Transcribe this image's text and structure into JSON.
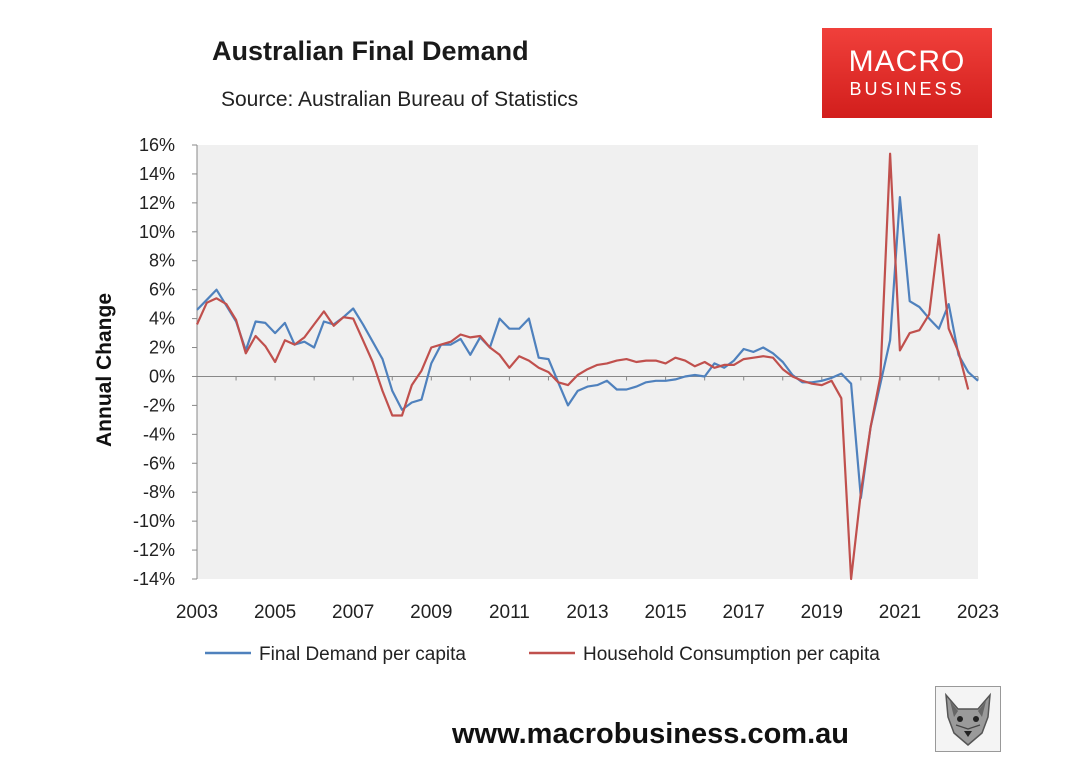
{
  "title": "Australian Final Demand",
  "subtitle": "Source: Australian Bureau of Statistics",
  "logo": {
    "line1": "MACRO",
    "line2": "BUSINESS",
    "color": "#e02a28"
  },
  "website": "www.macrobusiness.com.au",
  "chart_data": {
    "type": "line",
    "title": "Australian Final Demand",
    "subtitle": "Source: Australian Bureau of Statistics",
    "xlabel": "",
    "ylabel": "Annual Change",
    "xlim": [
      2003,
      2023
    ],
    "ylim": [
      -14,
      16
    ],
    "x_ticks": [
      "2003",
      "2005",
      "2007",
      "2009",
      "2011",
      "2013",
      "2015",
      "2017",
      "2019",
      "2021",
      "2023"
    ],
    "y_ticks": [
      "16%",
      "14%",
      "12%",
      "10%",
      "8%",
      "6%",
      "4%",
      "2%",
      "0%",
      "-2%",
      "-4%",
      "-6%",
      "-8%",
      "-10%",
      "-12%",
      "-14%"
    ],
    "grid": false,
    "legend_position": "bottom",
    "plot_background": "#f0f0f0",
    "series": [
      {
        "name": "Final Demand per capita",
        "color": "#4f81bd",
        "points": [
          [
            2003.0,
            4.6
          ],
          [
            2003.25,
            5.3
          ],
          [
            2003.5,
            6.0
          ],
          [
            2003.75,
            4.9
          ],
          [
            2004.0,
            3.8
          ],
          [
            2004.25,
            1.8
          ],
          [
            2004.5,
            3.8
          ],
          [
            2004.75,
            3.7
          ],
          [
            2005.0,
            3.0
          ],
          [
            2005.25,
            3.7
          ],
          [
            2005.5,
            2.2
          ],
          [
            2005.75,
            2.4
          ],
          [
            2006.0,
            2.0
          ],
          [
            2006.25,
            3.8
          ],
          [
            2006.5,
            3.6
          ],
          [
            2006.75,
            4.1
          ],
          [
            2007.0,
            4.7
          ],
          [
            2007.25,
            3.6
          ],
          [
            2007.5,
            2.4
          ],
          [
            2007.75,
            1.2
          ],
          [
            2008.0,
            -1.0
          ],
          [
            2008.25,
            -2.3
          ],
          [
            2008.5,
            -1.8
          ],
          [
            2008.75,
            -1.6
          ],
          [
            2009.0,
            0.9
          ],
          [
            2009.25,
            2.2
          ],
          [
            2009.5,
            2.2
          ],
          [
            2009.75,
            2.6
          ],
          [
            2010.0,
            1.5
          ],
          [
            2010.25,
            2.7
          ],
          [
            2010.5,
            2.0
          ],
          [
            2010.75,
            4.0
          ],
          [
            2011.0,
            3.3
          ],
          [
            2011.25,
            3.3
          ],
          [
            2011.5,
            4.0
          ],
          [
            2011.75,
            1.3
          ],
          [
            2012.0,
            1.2
          ],
          [
            2012.25,
            -0.4
          ],
          [
            2012.5,
            -2.0
          ],
          [
            2012.75,
            -1.0
          ],
          [
            2013.0,
            -0.7
          ],
          [
            2013.25,
            -0.6
          ],
          [
            2013.5,
            -0.3
          ],
          [
            2013.75,
            -0.9
          ],
          [
            2014.0,
            -0.9
          ],
          [
            2014.25,
            -0.7
          ],
          [
            2014.5,
            -0.4
          ],
          [
            2014.75,
            -0.3
          ],
          [
            2015.0,
            -0.3
          ],
          [
            2015.25,
            -0.2
          ],
          [
            2015.5,
            0.0
          ],
          [
            2015.75,
            0.1
          ],
          [
            2016.0,
            0.0
          ],
          [
            2016.25,
            0.9
          ],
          [
            2016.5,
            0.6
          ],
          [
            2016.75,
            1.1
          ],
          [
            2017.0,
            1.9
          ],
          [
            2017.25,
            1.7
          ],
          [
            2017.5,
            2.0
          ],
          [
            2017.75,
            1.6
          ],
          [
            2018.0,
            1.0
          ],
          [
            2018.25,
            0.1
          ],
          [
            2018.5,
            -0.4
          ],
          [
            2018.75,
            -0.4
          ],
          [
            2019.0,
            -0.3
          ],
          [
            2019.25,
            -0.1
          ],
          [
            2019.5,
            0.2
          ],
          [
            2019.75,
            -0.5
          ],
          [
            2020.0,
            -8.4
          ],
          [
            2020.25,
            -3.5
          ],
          [
            2020.5,
            -0.5
          ],
          [
            2020.75,
            2.5
          ],
          [
            2021.0,
            12.4
          ],
          [
            2021.25,
            5.2
          ],
          [
            2021.5,
            4.8
          ],
          [
            2021.75,
            4.0
          ],
          [
            2022.0,
            3.3
          ],
          [
            2022.25,
            5.0
          ],
          [
            2022.5,
            1.5
          ],
          [
            2022.75,
            0.3
          ],
          [
            2023.0,
            -0.3
          ]
        ]
      },
      {
        "name": "Household Consumption per capita",
        "color": "#c0504d",
        "points": [
          [
            2003.0,
            3.6
          ],
          [
            2003.25,
            5.1
          ],
          [
            2003.5,
            5.4
          ],
          [
            2003.75,
            5.0
          ],
          [
            2004.0,
            3.9
          ],
          [
            2004.25,
            1.6
          ],
          [
            2004.5,
            2.8
          ],
          [
            2004.75,
            2.1
          ],
          [
            2005.0,
            1.0
          ],
          [
            2005.25,
            2.5
          ],
          [
            2005.5,
            2.2
          ],
          [
            2005.75,
            2.7
          ],
          [
            2006.0,
            3.6
          ],
          [
            2006.25,
            4.5
          ],
          [
            2006.5,
            3.5
          ],
          [
            2006.75,
            4.1
          ],
          [
            2007.0,
            4.0
          ],
          [
            2007.25,
            2.5
          ],
          [
            2007.5,
            1.0
          ],
          [
            2007.75,
            -1.0
          ],
          [
            2008.0,
            -2.7
          ],
          [
            2008.25,
            -2.7
          ],
          [
            2008.5,
            -0.6
          ],
          [
            2008.75,
            0.4
          ],
          [
            2009.0,
            2.0
          ],
          [
            2009.25,
            2.2
          ],
          [
            2009.5,
            2.4
          ],
          [
            2009.75,
            2.9
          ],
          [
            2010.0,
            2.7
          ],
          [
            2010.25,
            2.8
          ],
          [
            2010.5,
            2.0
          ],
          [
            2010.75,
            1.5
          ],
          [
            2011.0,
            0.6
          ],
          [
            2011.25,
            1.4
          ],
          [
            2011.5,
            1.1
          ],
          [
            2011.75,
            0.6
          ],
          [
            2012.0,
            0.3
          ],
          [
            2012.25,
            -0.4
          ],
          [
            2012.5,
            -0.6
          ],
          [
            2012.75,
            0.1
          ],
          [
            2013.0,
            0.5
          ],
          [
            2013.25,
            0.8
          ],
          [
            2013.5,
            0.9
          ],
          [
            2013.75,
            1.1
          ],
          [
            2014.0,
            1.2
          ],
          [
            2014.25,
            1.0
          ],
          [
            2014.5,
            1.1
          ],
          [
            2014.75,
            1.1
          ],
          [
            2015.0,
            0.9
          ],
          [
            2015.25,
            1.3
          ],
          [
            2015.5,
            1.1
          ],
          [
            2015.75,
            0.7
          ],
          [
            2016.0,
            1.0
          ],
          [
            2016.25,
            0.6
          ],
          [
            2016.5,
            0.8
          ],
          [
            2016.75,
            0.8
          ],
          [
            2017.0,
            1.2
          ],
          [
            2017.25,
            1.3
          ],
          [
            2017.5,
            1.4
          ],
          [
            2017.75,
            1.3
          ],
          [
            2018.0,
            0.5
          ],
          [
            2018.25,
            0.0
          ],
          [
            2018.5,
            -0.3
          ],
          [
            2018.75,
            -0.5
          ],
          [
            2019.0,
            -0.6
          ],
          [
            2019.25,
            -0.3
          ],
          [
            2019.5,
            -1.5
          ],
          [
            2019.75,
            -14.0
          ],
          [
            2020.0,
            -8.0
          ],
          [
            2020.25,
            -3.5
          ],
          [
            2020.5,
            0.0
          ],
          [
            2020.75,
            15.4
          ],
          [
            2021.0,
            1.8
          ],
          [
            2021.25,
            3.0
          ],
          [
            2021.5,
            3.2
          ],
          [
            2021.75,
            4.3
          ],
          [
            2022.0,
            9.8
          ],
          [
            2022.25,
            3.3
          ],
          [
            2022.5,
            1.7
          ],
          [
            2022.75,
            -0.9
          ]
        ]
      }
    ]
  }
}
